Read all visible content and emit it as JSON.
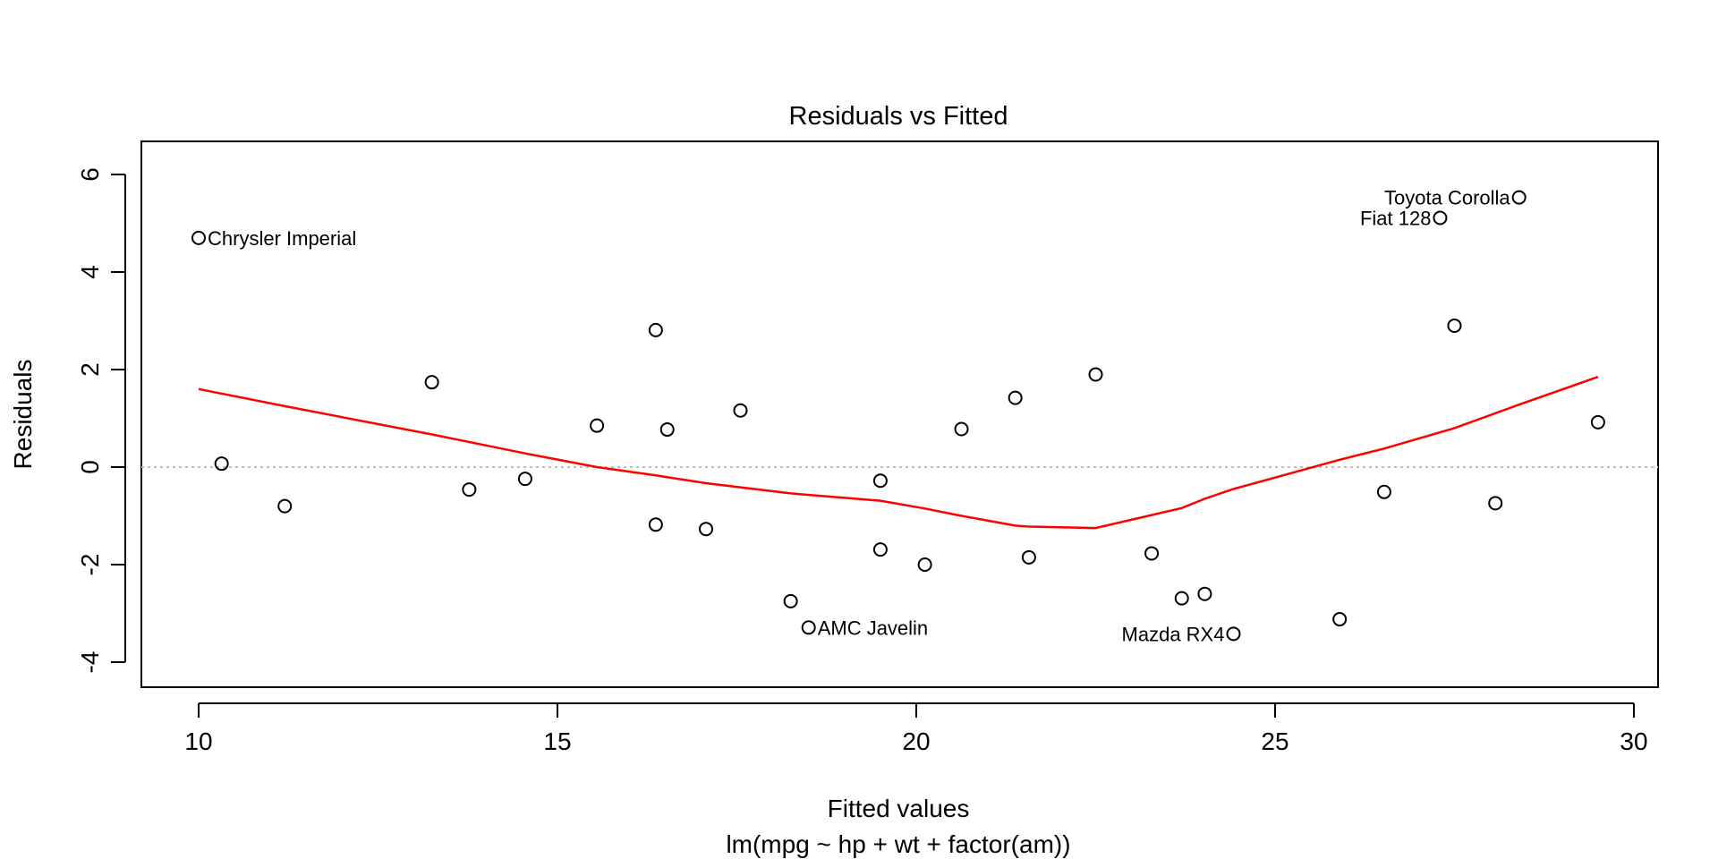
{
  "chart_data": {
    "type": "scatter",
    "title": "Residuals vs Fitted",
    "xlabel": "Fitted values",
    "xlabel_sub": "lm(mpg ~ hp + wt + factor(am))",
    "ylabel": "Residuals",
    "xlim": [
      9.2,
      30.5
    ],
    "ylim": [
      -4.6,
      6.5
    ],
    "xticks": [
      10,
      15,
      20,
      25,
      30
    ],
    "yticks": [
      -4,
      -2,
      0,
      2,
      4,
      6
    ],
    "reference_line": {
      "y": 0,
      "style": "dotted",
      "color": "#bbbbbb"
    },
    "points": [
      {
        "x": 10.0,
        "y": 4.7,
        "label": "Chrysler Imperial",
        "label_side": "right"
      },
      {
        "x": 10.32,
        "y": 0.07
      },
      {
        "x": 11.2,
        "y": -0.8
      },
      {
        "x": 13.25,
        "y": 1.74
      },
      {
        "x": 13.77,
        "y": -0.46
      },
      {
        "x": 14.55,
        "y": -0.24
      },
      {
        "x": 15.55,
        "y": 0.85
      },
      {
        "x": 16.37,
        "y": 2.81
      },
      {
        "x": 16.37,
        "y": -1.18
      },
      {
        "x": 16.53,
        "y": 0.77
      },
      {
        "x": 17.07,
        "y": -1.27
      },
      {
        "x": 17.55,
        "y": 1.16
      },
      {
        "x": 18.25,
        "y": -2.75
      },
      {
        "x": 18.5,
        "y": -3.29,
        "label": "AMC Javelin",
        "label_side": "right"
      },
      {
        "x": 19.5,
        "y": -0.28
      },
      {
        "x": 19.5,
        "y": -1.69
      },
      {
        "x": 20.12,
        "y": -2.0
      },
      {
        "x": 20.63,
        "y": 0.78
      },
      {
        "x": 21.38,
        "y": 1.42
      },
      {
        "x": 21.57,
        "y": -1.85
      },
      {
        "x": 22.5,
        "y": 1.9
      },
      {
        "x": 23.28,
        "y": -1.77
      },
      {
        "x": 23.7,
        "y": -2.69
      },
      {
        "x": 24.02,
        "y": -2.6
      },
      {
        "x": 24.42,
        "y": -3.42,
        "label": "Mazda RX4",
        "label_side": "left"
      },
      {
        "x": 25.9,
        "y": -3.12
      },
      {
        "x": 26.52,
        "y": -0.51
      },
      {
        "x": 27.3,
        "y": 5.11,
        "label": "Fiat 128",
        "label_side": "left"
      },
      {
        "x": 27.5,
        "y": 2.9
      },
      {
        "x": 28.07,
        "y": -0.74
      },
      {
        "x": 28.4,
        "y": 5.53,
        "label": "Toyota Corolla",
        "label_side": "left"
      },
      {
        "x": 29.5,
        "y": 0.92
      }
    ],
    "smooth_line": {
      "color": "#ff0000",
      "x": [
        10.0,
        11.2,
        13.25,
        14.55,
        15.55,
        16.37,
        17.07,
        18.25,
        19.5,
        20.12,
        20.63,
        21.38,
        21.57,
        22.5,
        23.7,
        24.02,
        24.42,
        25.9,
        26.52,
        27.5,
        28.4,
        29.5
      ],
      "y": [
        1.6,
        1.25,
        0.67,
        0.28,
        0.0,
        -0.17,
        -0.33,
        -0.54,
        -0.69,
        -0.85,
        -1.0,
        -1.2,
        -1.22,
        -1.25,
        -0.84,
        -0.65,
        -0.45,
        0.15,
        0.38,
        0.8,
        1.28,
        1.85
      ]
    }
  }
}
